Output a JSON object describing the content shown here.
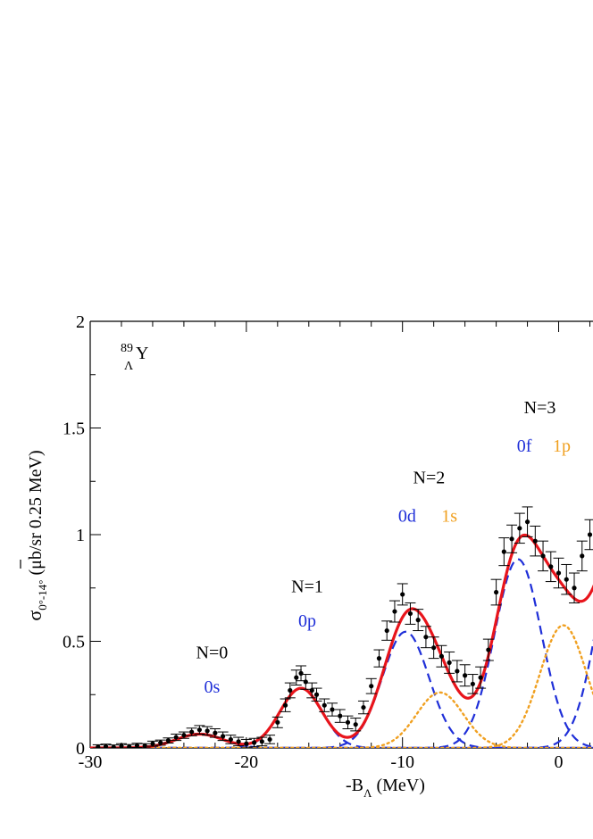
{
  "chart_data": {
    "type": "scatter",
    "nucleus": {
      "mass": "89",
      "sub": "Λ",
      "sym": "Y"
    },
    "ylabel": {
      "sym": "σ",
      "sub": "0°-14°",
      "unit": " (μb/sr 0.25 MeV)"
    },
    "xlabel": {
      "pre": "-B",
      "sub": "Λ",
      "unit": " (MeV)"
    },
    "xlim": [
      -30,
      2.2
    ],
    "ylim": [
      0,
      2
    ],
    "xticks": [
      -30,
      -20,
      -10,
      0
    ],
    "yticks": [
      0,
      0.5,
      1,
      1.5,
      2
    ],
    "ytick_labels": [
      "0",
      "0.5",
      "1",
      "1.5",
      "2"
    ],
    "colors": {
      "total": "#e8141b",
      "dashed": "#1f2fd8",
      "dotted": "#f0a020",
      "data": "#000000"
    },
    "annotations": [
      {
        "text": "N=0",
        "x": -22.2,
        "y": 0.42,
        "color": "#000000"
      },
      {
        "text": "0s",
        "x": -22.2,
        "y": 0.26,
        "color": "#1f2fd8"
      },
      {
        "text": "N=1",
        "x": -16.1,
        "y": 0.73,
        "color": "#000000"
      },
      {
        "text": "0p",
        "x": -16.1,
        "y": 0.57,
        "color": "#1f2fd8"
      },
      {
        "text": "N=2",
        "x": -8.3,
        "y": 1.24,
        "color": "#000000"
      },
      {
        "text": "0d",
        "x": -9.7,
        "y": 1.06,
        "color": "#1f2fd8"
      },
      {
        "text": "1s",
        "x": -7.0,
        "y": 1.06,
        "color": "#f0a020"
      },
      {
        "text": "N=3",
        "x": -1.2,
        "y": 1.57,
        "color": "#000000"
      },
      {
        "text": "0f",
        "x": -2.2,
        "y": 1.39,
        "color": "#1f2fd8"
      },
      {
        "text": "1p",
        "x": 0.2,
        "y": 1.39,
        "color": "#f0a020"
      }
    ],
    "components": [
      {
        "style": "dashed",
        "peaks": [
          {
            "mu": -23.0,
            "sigma": 1.5,
            "amp": 0.065
          },
          {
            "mu": -16.5,
            "sigma": 1.35,
            "amp": 0.28
          },
          {
            "mu": -9.8,
            "sigma": 1.5,
            "amp": 0.545
          },
          {
            "mu": -2.6,
            "sigma": 1.5,
            "amp": 0.885
          },
          {
            "mu": 4.0,
            "sigma": 1.5,
            "amp": 1.0
          }
        ]
      },
      {
        "style": "dotted",
        "peaks": [
          {
            "mu": -7.6,
            "sigma": 1.5,
            "amp": 0.26
          },
          {
            "mu": 0.3,
            "sigma": 1.5,
            "amp": 0.575
          }
        ]
      }
    ],
    "data_points": [
      {
        "x": -29.5,
        "y": 0.005,
        "e": 0.01
      },
      {
        "x": -29.0,
        "y": 0.008,
        "e": 0.01
      },
      {
        "x": -28.5,
        "y": 0.004,
        "e": 0.01
      },
      {
        "x": -28.0,
        "y": 0.01,
        "e": 0.01
      },
      {
        "x": -27.5,
        "y": 0.006,
        "e": 0.01
      },
      {
        "x": -27.0,
        "y": 0.012,
        "e": 0.01
      },
      {
        "x": -26.5,
        "y": 0.01,
        "e": 0.01
      },
      {
        "x": -26.0,
        "y": 0.02,
        "e": 0.012
      },
      {
        "x": -25.5,
        "y": 0.025,
        "e": 0.012
      },
      {
        "x": -25.0,
        "y": 0.035,
        "e": 0.012
      },
      {
        "x": -24.5,
        "y": 0.05,
        "e": 0.015
      },
      {
        "x": -24.0,
        "y": 0.06,
        "e": 0.015
      },
      {
        "x": -23.5,
        "y": 0.075,
        "e": 0.018
      },
      {
        "x": -23.0,
        "y": 0.085,
        "e": 0.02
      },
      {
        "x": -22.5,
        "y": 0.08,
        "e": 0.02
      },
      {
        "x": -22.0,
        "y": 0.07,
        "e": 0.02
      },
      {
        "x": -21.5,
        "y": 0.055,
        "e": 0.02
      },
      {
        "x": -21.0,
        "y": 0.04,
        "e": 0.02
      },
      {
        "x": -20.5,
        "y": 0.03,
        "e": 0.02
      },
      {
        "x": -20.0,
        "y": 0.02,
        "e": 0.02
      },
      {
        "x": -19.5,
        "y": 0.025,
        "e": 0.02
      },
      {
        "x": -19.0,
        "y": 0.03,
        "e": 0.02
      },
      {
        "x": -18.5,
        "y": 0.04,
        "e": 0.02
      },
      {
        "x": -18.0,
        "y": 0.12,
        "e": 0.025
      },
      {
        "x": -17.5,
        "y": 0.2,
        "e": 0.03
      },
      {
        "x": -17.2,
        "y": 0.27,
        "e": 0.035
      },
      {
        "x": -16.8,
        "y": 0.33,
        "e": 0.035
      },
      {
        "x": -16.5,
        "y": 0.35,
        "e": 0.035
      },
      {
        "x": -16.2,
        "y": 0.31,
        "e": 0.035
      },
      {
        "x": -15.8,
        "y": 0.27,
        "e": 0.035
      },
      {
        "x": -15.5,
        "y": 0.25,
        "e": 0.03
      },
      {
        "x": -15.0,
        "y": 0.2,
        "e": 0.03
      },
      {
        "x": -14.5,
        "y": 0.18,
        "e": 0.03
      },
      {
        "x": -14.0,
        "y": 0.15,
        "e": 0.03
      },
      {
        "x": -13.5,
        "y": 0.12,
        "e": 0.03
      },
      {
        "x": -13.0,
        "y": 0.11,
        "e": 0.03
      },
      {
        "x": -12.5,
        "y": 0.19,
        "e": 0.03
      },
      {
        "x": -12.0,
        "y": 0.29,
        "e": 0.035
      },
      {
        "x": -11.5,
        "y": 0.42,
        "e": 0.04
      },
      {
        "x": -11.0,
        "y": 0.55,
        "e": 0.045
      },
      {
        "x": -10.5,
        "y": 0.64,
        "e": 0.05
      },
      {
        "x": -10.0,
        "y": 0.72,
        "e": 0.05
      },
      {
        "x": -9.5,
        "y": 0.63,
        "e": 0.05
      },
      {
        "x": -9.0,
        "y": 0.6,
        "e": 0.05
      },
      {
        "x": -8.5,
        "y": 0.52,
        "e": 0.05
      },
      {
        "x": -8.0,
        "y": 0.47,
        "e": 0.05
      },
      {
        "x": -7.5,
        "y": 0.43,
        "e": 0.05
      },
      {
        "x": -7.0,
        "y": 0.4,
        "e": 0.05
      },
      {
        "x": -6.5,
        "y": 0.36,
        "e": 0.05
      },
      {
        "x": -6.0,
        "y": 0.34,
        "e": 0.05
      },
      {
        "x": -5.5,
        "y": 0.3,
        "e": 0.045
      },
      {
        "x": -5.0,
        "y": 0.33,
        "e": 0.05
      },
      {
        "x": -4.5,
        "y": 0.46,
        "e": 0.05
      },
      {
        "x": -4.0,
        "y": 0.73,
        "e": 0.06
      },
      {
        "x": -3.5,
        "y": 0.92,
        "e": 0.065
      },
      {
        "x": -3.0,
        "y": 0.98,
        "e": 0.065
      },
      {
        "x": -2.5,
        "y": 1.03,
        "e": 0.07
      },
      {
        "x": -2.0,
        "y": 1.06,
        "e": 0.07
      },
      {
        "x": -1.5,
        "y": 0.97,
        "e": 0.07
      },
      {
        "x": -1.0,
        "y": 0.9,
        "e": 0.07
      },
      {
        "x": -0.5,
        "y": 0.85,
        "e": 0.07
      },
      {
        "x": 0.0,
        "y": 0.82,
        "e": 0.07
      },
      {
        "x": 0.5,
        "y": 0.79,
        "e": 0.07
      },
      {
        "x": 1.0,
        "y": 0.75,
        "e": 0.07
      },
      {
        "x": 1.5,
        "y": 0.9,
        "e": 0.07
      },
      {
        "x": 2.0,
        "y": 1.0,
        "e": 0.07
      }
    ]
  }
}
